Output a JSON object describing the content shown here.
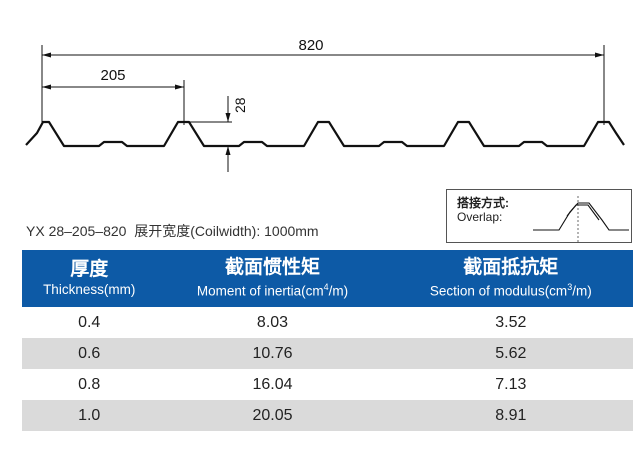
{
  "drawing": {
    "dim_total": "820",
    "dim_pitch": "205",
    "dim_height": "28"
  },
  "model": {
    "code": "YX 28–205–820",
    "coil_width": "展开宽度(Coilwidth): 1000mm"
  },
  "overlap": {
    "label_cn": "搭接方式:",
    "label_en": "Overlap:"
  },
  "table": {
    "headers": [
      {
        "cn": "厚度",
        "en": "Thickness(mm)",
        "sup": "",
        "en_tail": ""
      },
      {
        "cn": "截面惯性矩",
        "en": "Moment of inertia(cm",
        "sup": "4",
        "en_tail": "/m)"
      },
      {
        "cn": "截面抵抗矩",
        "en": "Section of modulus(cm",
        "sup": "3",
        "en_tail": "/m)"
      }
    ],
    "rows": [
      [
        "0.4",
        "8.03",
        "3.52"
      ],
      [
        "0.6",
        "10.76",
        "5.62"
      ],
      [
        "0.8",
        "16.04",
        "7.13"
      ],
      [
        "1.0",
        "20.05",
        "8.91"
      ]
    ]
  }
}
